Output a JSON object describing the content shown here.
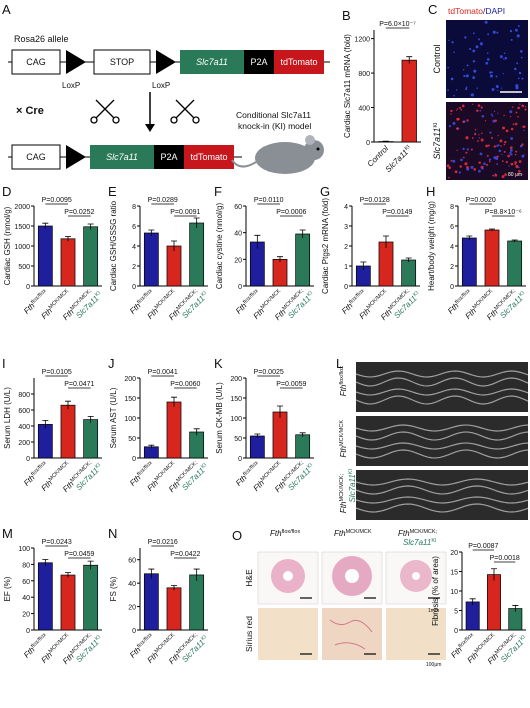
{
  "panels": {
    "A": "A",
    "C": "C",
    "L": "L",
    "O": "O"
  },
  "diagram": {
    "allele": "Rosa26 allele",
    "cag1": "CAG",
    "stop": "STOP",
    "gene1": "Slc7a11",
    "p2a1": "P2A",
    "td1": "tdTomato",
    "loxp1": "LoxP",
    "loxp2": "LoxP",
    "cre": "× Cre",
    "cag2": "CAG",
    "gene2": "Slc7a11",
    "p2a2": "P2A",
    "td2": "tdTomato",
    "model1": "Conditional Slc7a11",
    "model2": "knock-in (KI) model"
  },
  "imaging": {
    "title_red": "tdTomato",
    "title_blue": "/DAPI",
    "row1": "Control",
    "row2": [
      "Slc7a11",
      "KI"
    ],
    "scale": "80 μm"
  },
  "echo": {
    "rows": [
      [
        [
          "Fth",
          "flox/flox"
        ]
      ],
      [
        [
          "Fth",
          "MCK/MCK"
        ]
      ],
      [
        [
          "Fth",
          "MCK/MCK;"
        ],
        [
          "Slc7a11",
          "KI"
        ]
      ]
    ]
  },
  "histology": {
    "cols": [
      [
        [
          "Fth",
          "flox/flox"
        ]
      ],
      [
        [
          "Fth",
          "MCK/MCK"
        ]
      ],
      [
        [
          "Fth",
          "MCK/MCK;"
        ],
        [
          "Slc7a11",
          "KI"
        ]
      ]
    ],
    "row1": "H&E",
    "row2": "Sirius red",
    "scale1": "1mm",
    "scale2": "100μm"
  },
  "chart_data": [
    {
      "type": "bar",
      "panel": "B",
      "ylabel": "Cardiac Slc7a11 mRNA (fold)",
      "categories": [
        [
          [
            "Control"
          ]
        ],
        [
          [
            "Slc7a11",
            "KI"
          ]
        ]
      ],
      "colors": [
        "#ffffff",
        "#d7261e"
      ],
      "values": [
        5,
        950
      ],
      "errors": [
        5,
        40
      ],
      "ylim": [
        0,
        1300
      ],
      "yticks": [
        0,
        400,
        800,
        1200
      ],
      "annotations": [
        "P=6.0×10⁻⁷"
      ]
    },
    {
      "type": "bar",
      "panel": "D",
      "ylabel": "Cardiac GSH (nmol/g)",
      "categories": [
        [
          [
            "Fth",
            "flox/flox"
          ]
        ],
        [
          [
            "Fth",
            "MCK/MCK"
          ]
        ],
        [
          [
            "Fth",
            "MCK/MCK;"
          ],
          [
            "Slc7a11",
            "KI"
          ]
        ]
      ],
      "colors": [
        "#1f1f9e",
        "#d7261e",
        "#2a7a5a"
      ],
      "values": [
        1500,
        1180,
        1480
      ],
      "errors": [
        70,
        60,
        70
      ],
      "ylim": [
        0,
        2000
      ],
      "yticks": [
        0,
        500,
        1000,
        1500,
        2000
      ],
      "annotations": [
        "P=0.0095",
        "P=0.0252"
      ]
    },
    {
      "type": "bar",
      "panel": "E",
      "ylabel": "Cardiac GSH/GSSG ratio",
      "categories": [
        [
          [
            "Fth",
            "flox/flox"
          ]
        ],
        [
          [
            "Fth",
            "MCK/MCK"
          ]
        ],
        [
          [
            "Fth",
            "MCK/MCK;"
          ],
          [
            "Slc7a11",
            "KI"
          ]
        ]
      ],
      "colors": [
        "#1f1f9e",
        "#d7261e",
        "#2a7a5a"
      ],
      "values": [
        5.3,
        4.0,
        6.3
      ],
      "errors": [
        0.3,
        0.5,
        0.5
      ],
      "ylim": [
        0,
        8
      ],
      "yticks": [
        0,
        2,
        4,
        6,
        8
      ],
      "annotations": [
        "P=0.0289",
        "P=0.0091"
      ]
    },
    {
      "type": "bar",
      "panel": "F",
      "ylabel": "Cardiac cystine (nmol/g)",
      "categories": [
        [
          [
            "Fth",
            "flox/flox"
          ]
        ],
        [
          [
            "Fth",
            "MCK/MCK"
          ]
        ],
        [
          [
            "Fth",
            "MCK/MCK;"
          ],
          [
            "Slc7a11",
            "KI"
          ]
        ]
      ],
      "colors": [
        "#1f1f9e",
        "#d7261e",
        "#2a7a5a"
      ],
      "values": [
        33,
        20,
        39
      ],
      "errors": [
        5,
        2,
        3
      ],
      "ylim": [
        0,
        60
      ],
      "yticks": [
        0,
        20,
        40,
        60
      ],
      "annotations": [
        "P=0.0110",
        "P=0.0006"
      ]
    },
    {
      "type": "bar",
      "panel": "G",
      "ylabel": "Cardiac Ptgs2 mRNA (fold)",
      "categories": [
        [
          [
            "Fth",
            "flox/flox"
          ]
        ],
        [
          [
            "Fth",
            "MCK/MCK"
          ]
        ],
        [
          [
            "Fth",
            "MCK/MCK;"
          ],
          [
            "Slc7a11",
            "KI"
          ]
        ]
      ],
      "colors": [
        "#1f1f9e",
        "#d7261e",
        "#2a7a5a"
      ],
      "values": [
        1.0,
        2.2,
        1.3
      ],
      "errors": [
        0.2,
        0.3,
        0.1
      ],
      "ylim": [
        0,
        4
      ],
      "yticks": [
        0,
        1,
        2,
        3,
        4
      ],
      "annotations": [
        "P=0.0128",
        "P=0.0149"
      ]
    },
    {
      "type": "bar",
      "panel": "H",
      "ylabel": "Heart/body weight (mg/g)",
      "categories": [
        [
          [
            "Fth",
            "flox/flox"
          ]
        ],
        [
          [
            "Fth",
            "MCK/MCK"
          ]
        ],
        [
          [
            "Fth",
            "MCK/MCK;"
          ],
          [
            "Slc7a11",
            "KI"
          ]
        ]
      ],
      "colors": [
        "#1f1f9e",
        "#d7261e",
        "#2a7a5a"
      ],
      "values": [
        4.8,
        5.6,
        4.5
      ],
      "errors": [
        0.2,
        0.1,
        0.1
      ],
      "ylim": [
        0,
        8
      ],
      "yticks": [
        0,
        2,
        4,
        6,
        8
      ],
      "annotations": [
        "P=0.0020",
        "P=8.8×10⁻⁶"
      ]
    },
    {
      "type": "bar",
      "panel": "I",
      "ylabel": "Serum LDH (U/L)",
      "categories": [
        [
          [
            "Fth",
            "flox/flox"
          ]
        ],
        [
          [
            "Fth",
            "MCK/MCK"
          ]
        ],
        [
          [
            "Fth",
            "MCK/MCK;"
          ],
          [
            "Slc7a11",
            "KI"
          ]
        ]
      ],
      "colors": [
        "#1f1f9e",
        "#d7261e",
        "#2a7a5a"
      ],
      "values": [
        420,
        660,
        480
      ],
      "errors": [
        50,
        50,
        40
      ],
      "ylim": [
        0,
        1000
      ],
      "yticks": [
        0,
        200,
        400,
        600,
        800
      ],
      "annotations": [
        "P=0.0105",
        "P=0.0471"
      ]
    },
    {
      "type": "bar",
      "panel": "J",
      "ylabel": "Serum AST (U/L)",
      "categories": [
        [
          [
            "Fth",
            "flox/flox"
          ]
        ],
        [
          [
            "Fth",
            "MCK/MCK"
          ]
        ],
        [
          [
            "Fth",
            "MCK/MCK;"
          ],
          [
            "Slc7a11",
            "KI"
          ]
        ]
      ],
      "colors": [
        "#1f1f9e",
        "#d7261e",
        "#2a7a5a"
      ],
      "values": [
        28,
        140,
        65
      ],
      "errors": [
        4,
        12,
        8
      ],
      "ylim": [
        0,
        200
      ],
      "yticks": [
        0,
        50,
        100,
        150,
        200
      ],
      "annotations": [
        "P=0.0041",
        "P=0.0060"
      ]
    },
    {
      "type": "bar",
      "panel": "K",
      "ylabel": "Serum CK-MB (U/L)",
      "categories": [
        [
          [
            "Fth",
            "flox/flox"
          ]
        ],
        [
          [
            "Fth",
            "MCK/MCK"
          ]
        ],
        [
          [
            "Fth",
            "MCK/MCK;"
          ],
          [
            "Slc7a11",
            "KI"
          ]
        ]
      ],
      "colors": [
        "#1f1f9e",
        "#d7261e",
        "#2a7a5a"
      ],
      "values": [
        55,
        115,
        58
      ],
      "errors": [
        5,
        15,
        5
      ],
      "ylim": [
        0,
        200
      ],
      "yticks": [
        0,
        50,
        100,
        150,
        200
      ],
      "annotations": [
        "P=0.0025",
        "P=0.0059"
      ]
    },
    {
      "type": "bar",
      "panel": "M",
      "ylabel": "EF (%)",
      "categories": [
        [
          [
            "Fth",
            "flox/flox"
          ]
        ],
        [
          [
            "Fth",
            "MCK/MCK"
          ]
        ],
        [
          [
            "Fth",
            "MCK/MCK;"
          ],
          [
            "Slc7a11",
            "KI"
          ]
        ]
      ],
      "colors": [
        "#1f1f9e",
        "#d7261e",
        "#2a7a5a"
      ],
      "values": [
        82,
        67,
        79
      ],
      "errors": [
        4,
        3,
        5
      ],
      "ylim": [
        0,
        100
      ],
      "yticks": [
        0,
        20,
        40,
        60,
        80,
        100
      ],
      "annotations": [
        "P=0.0243",
        "P=0.0459"
      ]
    },
    {
      "type": "bar",
      "panel": "N",
      "ylabel": "FS (%)",
      "categories": [
        [
          [
            "Fth",
            "flox/flox"
          ]
        ],
        [
          [
            "Fth",
            "MCK/MCK"
          ]
        ],
        [
          [
            "Fth",
            "MCK/MCK;"
          ],
          [
            "Slc7a11",
            "KI"
          ]
        ]
      ],
      "colors": [
        "#1f1f9e",
        "#d7261e",
        "#2a7a5a"
      ],
      "values": [
        48,
        36,
        47
      ],
      "errors": [
        4,
        2,
        5
      ],
      "ylim": [
        0,
        70
      ],
      "yticks": [
        0,
        20,
        40,
        60
      ],
      "annotations": [
        "P=0.0216",
        "P=0.0422"
      ]
    },
    {
      "type": "bar",
      "panel": "",
      "ylabel": "Fibrosis (% of area)",
      "categories": [
        [
          [
            "Fth",
            "flox/flox"
          ]
        ],
        [
          [
            "Fth",
            "MCK/MCK"
          ]
        ],
        [
          [
            "Fth",
            "MCK/MCK;"
          ],
          [
            "Slc7a11",
            "KI"
          ]
        ]
      ],
      "colors": [
        "#1f1f9e",
        "#d7261e",
        "#2a7a5a"
      ],
      "values": [
        7.2,
        14.2,
        5.5
      ],
      "errors": [
        0.8,
        1.5,
        0.8
      ],
      "ylim": [
        0,
        20
      ],
      "yticks": [
        0,
        5,
        10,
        15,
        20
      ],
      "annotations": [
        "P=0.0087",
        "P=0.0018"
      ]
    }
  ]
}
